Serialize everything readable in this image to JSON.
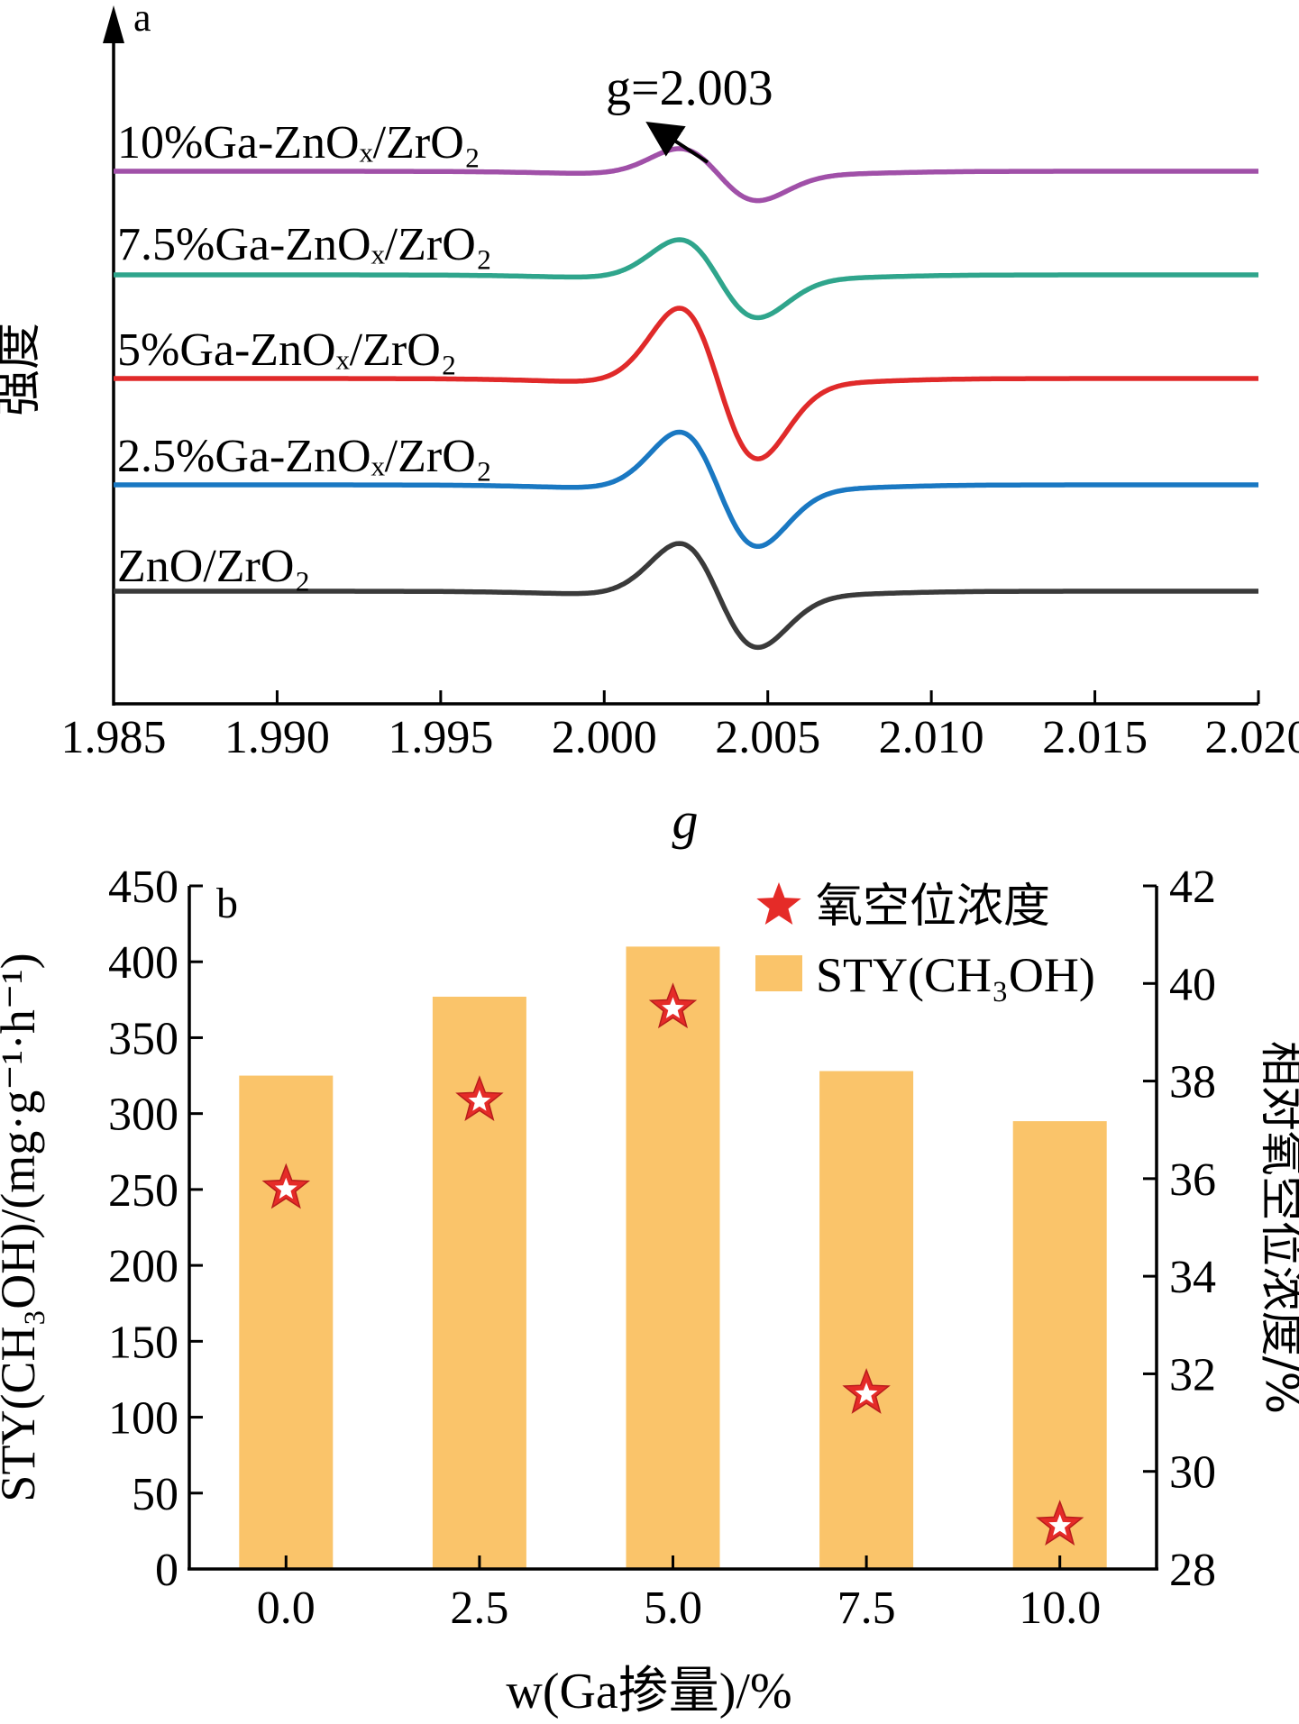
{
  "chart_data": [
    {
      "type": "line",
      "panel_label": "a",
      "title": "",
      "xlabel": "g",
      "ylabel": "强度",
      "xlim": [
        1.985,
        2.02
      ],
      "x_ticks": [
        1.985,
        1.99,
        1.995,
        2.0,
        2.005,
        2.01,
        2.015,
        2.02
      ],
      "x_tick_labels": [
        "1.985",
        "1.990",
        "1.995",
        "2.000",
        "2.005",
        "2.010",
        "2.015",
        "2.020"
      ],
      "annotation": "g=2.003",
      "series": [
        {
          "name": "ZnO/ZrO₂",
          "color": "#3a3a3a",
          "offset": 0,
          "amplitude": 1.0
        },
        {
          "name": "2.5%Ga-ZnOₓ/ZrO₂",
          "color": "#1a78c2",
          "offset": 1,
          "amplitude": 1.1
        },
        {
          "name": "5%Ga-ZnOₓ/ZrO₂",
          "color": "#e02a2a",
          "offset": 2,
          "amplitude": 1.45
        },
        {
          "name": "7.5%Ga-ZnOₓ/ZrO₂",
          "color": "#2fa58c",
          "offset": 3,
          "amplitude": 0.75
        },
        {
          "name": "10%Ga-ZnOₓ/ZrO₂",
          "color": "#a050a8",
          "offset": 4,
          "amplitude": 0.5
        }
      ]
    },
    {
      "type": "bar",
      "panel_label": "b",
      "title": "",
      "xlabel": "w(Ga掺量)/%",
      "ylabel": "STY(CH₃OH)/(mg·g⁻¹·h⁻¹)",
      "y2label": "相对氧空位浓度/%",
      "categories": [
        "0.0",
        "2.5",
        "5.0",
        "7.5",
        "10.0"
      ],
      "ylim": [
        0,
        450
      ],
      "y_ticks": [
        0,
        50,
        100,
        150,
        200,
        250,
        300,
        350,
        400,
        450
      ],
      "y2lim": [
        28,
        42
      ],
      "y2_ticks": [
        28,
        30,
        32,
        34,
        36,
        38,
        40,
        42
      ],
      "legend_position": "top-right",
      "series": [
        {
          "name": "STY(CH₃OH)",
          "kind": "bar",
          "axis": "left",
          "color": "#fac46a",
          "values": [
            325,
            377,
            410,
            328,
            295
          ]
        },
        {
          "name": "氧空位浓度",
          "kind": "scatter",
          "axis": "right",
          "color": "#e52b28",
          "values": [
            35.8,
            37.6,
            39.5,
            31.6,
            28.9
          ]
        }
      ]
    }
  ]
}
